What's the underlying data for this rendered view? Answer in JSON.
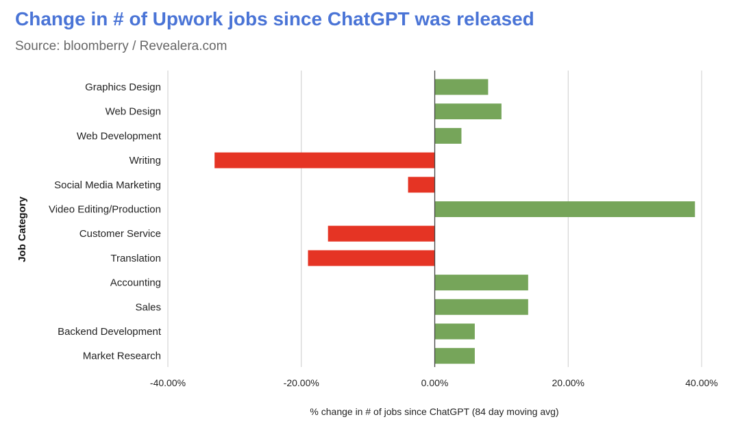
{
  "title": "Change in # of Upwork jobs since ChatGPT was released",
  "subtitle": "Source: bloomberry / Revealera.com",
  "colors": {
    "title": "#4a74d6",
    "positive": "#76a55a",
    "negative": "#e53424",
    "gridline": "#cccccc",
    "zero_line": "#444444"
  },
  "chart_data": {
    "type": "bar",
    "orientation": "horizontal",
    "title": "Change in # of Upwork jobs since ChatGPT was released",
    "subtitle": "Source: bloomberry / Revealera.com",
    "xlabel": "% change in # of jobs since ChatGPT (84 day moving avg)",
    "ylabel": "Job Category",
    "xlim": [
      -0.4,
      0.4
    ],
    "x_ticks": [
      -0.4,
      -0.2,
      0,
      0.2,
      0.4
    ],
    "x_tick_labels": [
      "-40.00%",
      "-20.00%",
      "0.00%",
      "20.00%",
      "40.00%"
    ],
    "grid": true,
    "categories": [
      "Graphics Design",
      "Web Design",
      "Web Development",
      "Writing",
      "Social Media Marketing",
      "Video Editing/Production",
      "Customer Service",
      "Translation",
      "Accounting",
      "Sales",
      "Backend Development",
      "Market Research"
    ],
    "values": [
      0.08,
      0.1,
      0.04,
      -0.33,
      -0.04,
      0.39,
      -0.16,
      -0.19,
      0.14,
      0.14,
      0.06,
      0.06
    ]
  }
}
